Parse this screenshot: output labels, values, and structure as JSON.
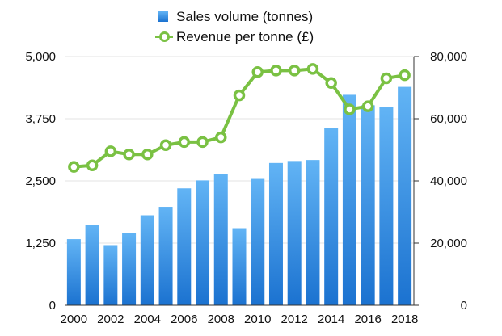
{
  "chart_data": {
    "type": "bar",
    "categories": [
      "2000",
      "2001",
      "2002",
      "2003",
      "2004",
      "2005",
      "2006",
      "2007",
      "2008",
      "2009",
      "2010",
      "2011",
      "2012",
      "2013",
      "2014",
      "2015",
      "2016",
      "2017",
      "2018"
    ],
    "x_tick_labels": [
      "2000",
      "2002",
      "2004",
      "2006",
      "2008",
      "2010",
      "2012",
      "2014",
      "2016",
      "2018"
    ],
    "series": [
      {
        "name": "Sales volume (tonnes)",
        "type": "bar",
        "axis": "left",
        "color": "#3a8fe3",
        "values": [
          1330,
          1620,
          1210,
          1450,
          1810,
          1980,
          2350,
          2510,
          2640,
          1550,
          2540,
          2860,
          2900,
          2920,
          3570,
          4230,
          4020,
          3990,
          4390
        ]
      },
      {
        "name": "Revenue per tonne (£)",
        "type": "line",
        "axis": "right",
        "color": "#7ac143",
        "values": [
          44500,
          45000,
          49500,
          48500,
          48500,
          51500,
          52500,
          52500,
          54000,
          67500,
          75000,
          75500,
          75500,
          76000,
          71500,
          63000,
          64000,
          73000,
          74000
        ]
      }
    ],
    "y_left": {
      "min": 0,
      "max": 5000,
      "ticks": [
        "0",
        "1,250",
        "2,500",
        "3,750",
        "5,000"
      ]
    },
    "y_right": {
      "min": 0,
      "max": 80000,
      "ticks": [
        "0",
        "20,000",
        "40,000",
        "60,000",
        "80,000"
      ]
    },
    "title": "",
    "xlabel": "",
    "ylabel": "",
    "grid": true,
    "legend_position": "top"
  }
}
